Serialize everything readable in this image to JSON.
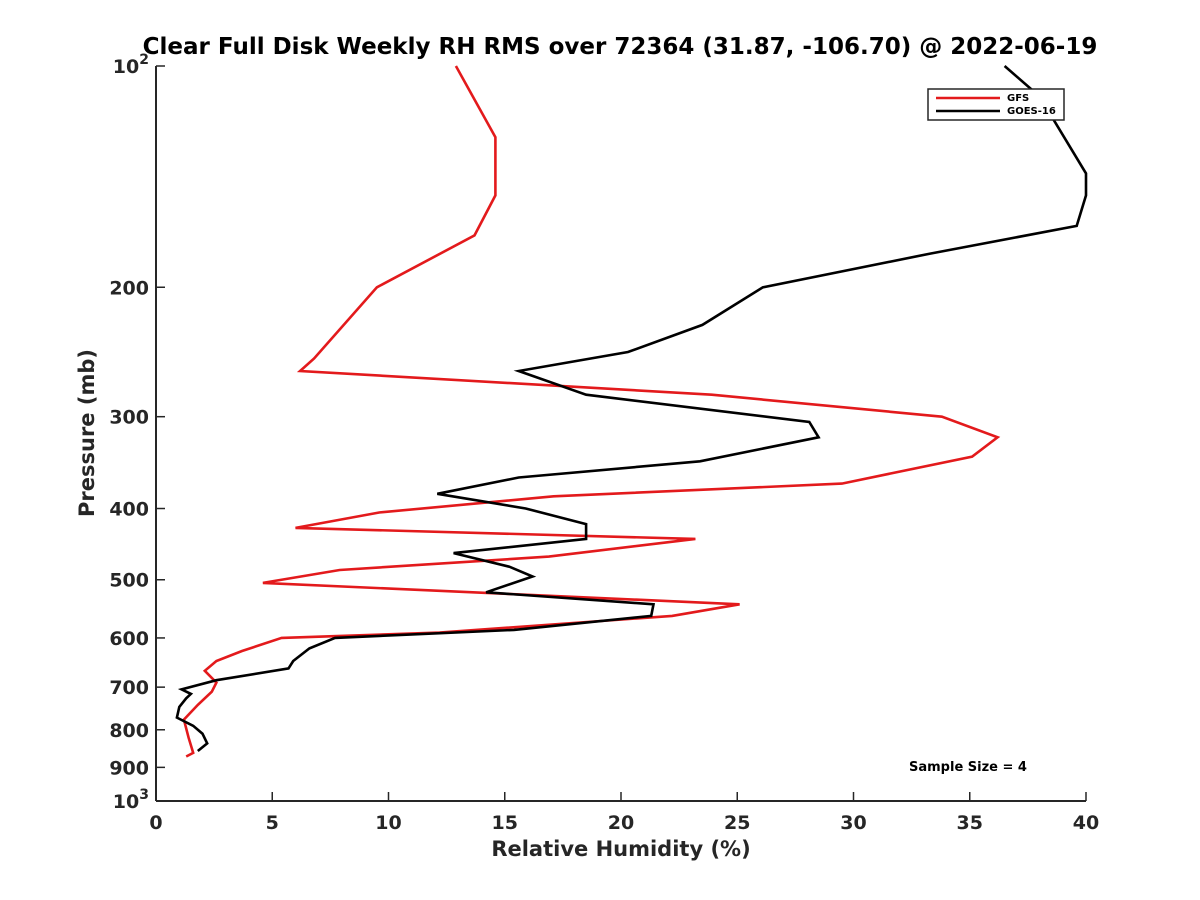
{
  "chart_data": {
    "type": "line",
    "title": "Clear Full Disk Weekly RH RMS over 72364 (31.87, -106.70) @ 2022-06-19",
    "xlabel": "Relative Humidity (%)",
    "ylabel": "Pressure (mb)",
    "xlim": [
      0,
      40
    ],
    "ylim": [
      100,
      1000
    ],
    "y_scale": "log",
    "y_reversed": true,
    "x_ticks": [
      0,
      5,
      10,
      15,
      20,
      25,
      30,
      35,
      40
    ],
    "x_tick_labels": [
      "0",
      "5",
      "10",
      "15",
      "20",
      "25",
      "30",
      "35",
      "40"
    ],
    "y_ticks": [
      100,
      200,
      300,
      400,
      500,
      600,
      700,
      800,
      900,
      1000
    ],
    "y_tick_labels": [
      {
        "base": "10",
        "exp": "2"
      },
      {
        "base": "200",
        "exp": ""
      },
      {
        "base": "300",
        "exp": ""
      },
      {
        "base": "400",
        "exp": ""
      },
      {
        "base": "500",
        "exp": ""
      },
      {
        "base": "600",
        "exp": ""
      },
      {
        "base": "700",
        "exp": ""
      },
      {
        "base": "800",
        "exp": ""
      },
      {
        "base": "900",
        "exp": ""
      },
      {
        "base": "10",
        "exp": "3"
      }
    ],
    "grid": false,
    "legend_position": "top-right",
    "annotation": "Sample Size = 4",
    "series": [
      {
        "name": "GFS",
        "color": "#e31a1c",
        "points": [
          [
            12.9,
            100
          ],
          [
            14.6,
            125
          ],
          [
            14.6,
            150
          ],
          [
            13.7,
            170
          ],
          [
            9.5,
            200
          ],
          [
            6.8,
            250
          ],
          [
            6.2,
            260
          ],
          [
            23.9,
            280
          ],
          [
            33.8,
            300
          ],
          [
            36.2,
            320
          ],
          [
            35.1,
            340
          ],
          [
            29.5,
            370
          ],
          [
            17.1,
            385
          ],
          [
            9.6,
            405
          ],
          [
            6.0,
            425
          ],
          [
            23.2,
            440
          ],
          [
            16.9,
            465
          ],
          [
            7.9,
            485
          ],
          [
            4.6,
            505
          ],
          [
            25.1,
            540
          ],
          [
            22.2,
            560
          ],
          [
            12.2,
            590
          ],
          [
            5.4,
            600
          ],
          [
            3.7,
            625
          ],
          [
            2.6,
            645
          ],
          [
            2.1,
            665
          ],
          [
            2.6,
            690
          ],
          [
            2.4,
            710
          ],
          [
            1.8,
            740
          ],
          [
            1.2,
            775
          ],
          [
            1.4,
            820
          ],
          [
            1.6,
            860
          ],
          [
            1.3,
            870
          ]
        ]
      },
      {
        "name": "GOES-16",
        "color": "#000000",
        "points": [
          [
            36.5,
            100
          ],
          [
            38.0,
            110
          ],
          [
            40.0,
            140
          ],
          [
            40.0,
            150
          ],
          [
            39.6,
            165
          ],
          [
            33.3,
            180
          ],
          [
            26.1,
            200
          ],
          [
            23.5,
            225
          ],
          [
            20.3,
            245
          ],
          [
            15.6,
            260
          ],
          [
            18.5,
            280
          ],
          [
            28.1,
            305
          ],
          [
            28.5,
            320
          ],
          [
            23.4,
            345
          ],
          [
            15.6,
            363
          ],
          [
            12.1,
            382
          ],
          [
            15.9,
            400
          ],
          [
            18.5,
            420
          ],
          [
            18.5,
            440
          ],
          [
            12.8,
            460
          ],
          [
            15.2,
            480
          ],
          [
            16.2,
            495
          ],
          [
            14.2,
            520
          ],
          [
            21.4,
            540
          ],
          [
            21.3,
            560
          ],
          [
            15.4,
            585
          ],
          [
            7.7,
            600
          ],
          [
            6.6,
            620
          ],
          [
            5.9,
            645
          ],
          [
            5.7,
            660
          ],
          [
            2.6,
            685
          ],
          [
            1.1,
            705
          ],
          [
            1.5,
            715
          ],
          [
            1.3,
            725
          ],
          [
            1.0,
            745
          ],
          [
            0.9,
            770
          ],
          [
            1.6,
            790
          ],
          [
            2.0,
            810
          ],
          [
            2.2,
            835
          ],
          [
            1.8,
            855
          ]
        ]
      }
    ]
  }
}
